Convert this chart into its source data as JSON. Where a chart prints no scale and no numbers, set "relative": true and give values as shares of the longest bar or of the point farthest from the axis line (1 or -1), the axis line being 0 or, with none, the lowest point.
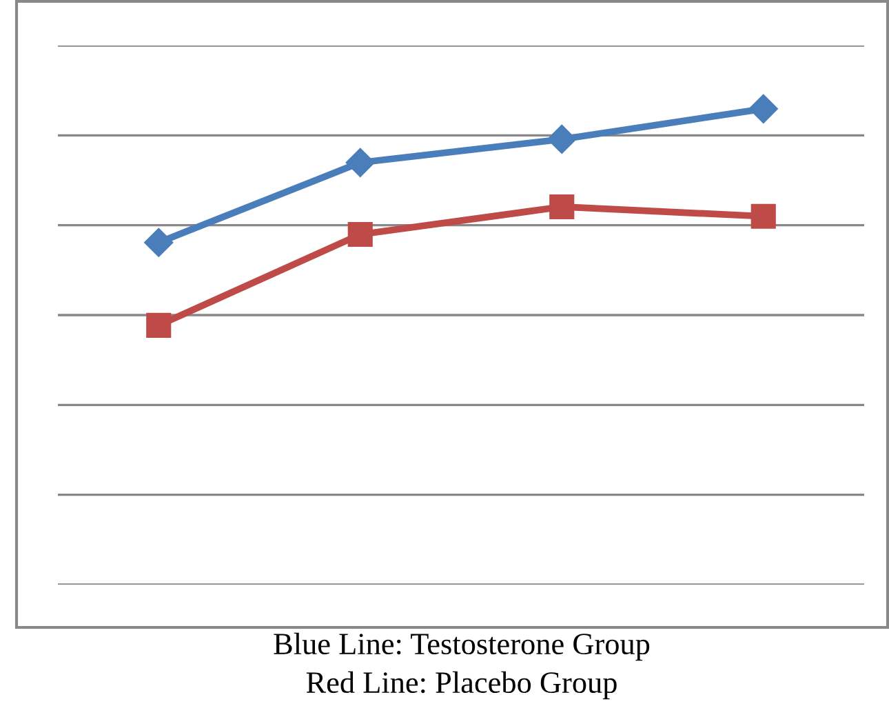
{
  "chart_data": {
    "type": "line",
    "relative": true,
    "categories": [
      null,
      null,
      null,
      null
    ],
    "series": [
      {
        "color": "#4a7ebb",
        "marker": "diamond",
        "values": [
          0.719,
          0.887,
          0.936,
          1
        ]
      },
      {
        "color": "#be4b48",
        "marker": "square",
        "values": [
          0.545,
          0.736,
          0.794,
          0.774
        ]
      }
    ],
    "grid": "y",
    "legend": false,
    "line_style": "solid",
    "annotations": [
      "Blue Line: Testosterone Group",
      "Red Line: Placebo Group"
    ]
  }
}
